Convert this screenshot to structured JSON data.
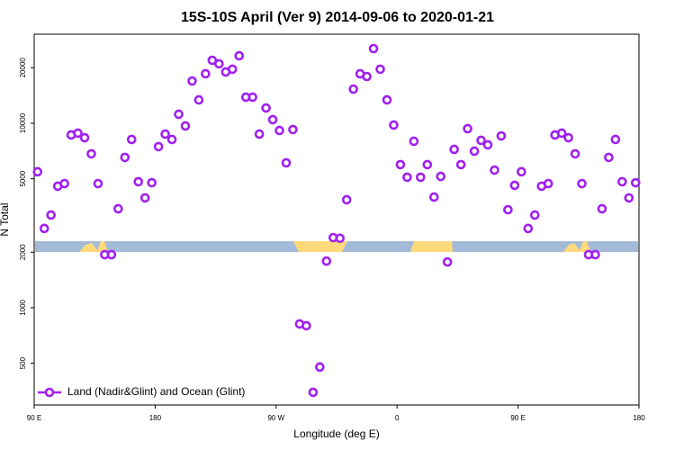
{
  "chart_data": {
    "type": "scatter",
    "title": "15S-10S April (Ver 9)   2014-09-06 to 2020-01-21",
    "x_label": "Longitude (deg E)",
    "y_label": "N Total",
    "log_y": true,
    "legend_position": "bottom-left",
    "xlim": [
      90,
      540
    ],
    "xticks": [
      {
        "value": 90,
        "label": "90 E"
      },
      {
        "value": 180,
        "label": "180"
      },
      {
        "value": 270,
        "label": "90 W"
      },
      {
        "value": 360,
        "label": "0"
      },
      {
        "value": 450,
        "label": "90 E"
      },
      {
        "value": 540,
        "label": "180"
      }
    ],
    "ylim": [
      297,
      30400
    ],
    "yticks": [
      500,
      1000,
      2000,
      5000,
      10000,
      20000
    ],
    "series": [
      {
        "name": "Land (Nadir&Glint) and Ocean (Glint)",
        "color": "#a020f0",
        "x": [
          92.5,
          97.5,
          102.5,
          107.5,
          112.5,
          117.5,
          122.5,
          127.5,
          132.5,
          137.5,
          142.5,
          147.5,
          152.5,
          157.5,
          162.5,
          167.5,
          172.5,
          177.5,
          182.5,
          187.5,
          192.5,
          197.5,
          202.5,
          207.5,
          212.5,
          217.5,
          222.5,
          227.5,
          232.5,
          237.5,
          242.5,
          247.5,
          252.5,
          257.5,
          262.5,
          267.5,
          272.5,
          277.5,
          282.5,
          287.5,
          292.5,
          297.5,
          302.5,
          307.5,
          312.5,
          317.5,
          322.5,
          327.5,
          332.5,
          337.5,
          342.5,
          347.5,
          352.5,
          357.5,
          362.5,
          367.5,
          372.5,
          377.5,
          382.5,
          387.5,
          392.5,
          397.5,
          402.5,
          407.5,
          412.5,
          417.5,
          422.5,
          427.5,
          432.5,
          437.5,
          442.5,
          447.5,
          452.5,
          457.5,
          462.5,
          467.5,
          472.5,
          477.5,
          482.5,
          487.5,
          492.5,
          497.5,
          502.5,
          507.5,
          512.5,
          517.5,
          522.5,
          527.5,
          532.5,
          537.5
        ],
        "values": [
          5460,
          2690,
          3180,
          4560,
          4710,
          8640,
          8840,
          8350,
          6830,
          4710,
          1940,
          1940,
          3440,
          6530,
          8170,
          4820,
          3940,
          4760,
          7470,
          8740,
          8170,
          11190,
          9670,
          16950,
          13390,
          18550,
          21950,
          21000,
          18970,
          19630,
          23220,
          13850,
          13850,
          8740,
          12100,
          10460,
          9140,
          6100,
          9250,
          817,
          799,
          348,
          477,
          1790,
          2400,
          2380,
          3850,
          15320,
          18550,
          17930,
          25400,
          19630,
          13390,
          9780,
          5970,
          5100,
          7990,
          5100,
          5970,
          3980,
          5150,
          1770,
          7220,
          5970,
          9350,
          7060,
          8080,
          7640,
          5570,
          8540,
          3400,
          4610,
          5460,
          2690,
          3180,
          4560,
          4710,
          8640,
          8840,
          8350,
          6830,
          4710,
          1940,
          1940,
          3440,
          6530,
          8170,
          4820,
          3940,
          4760
        ]
      }
    ]
  }
}
